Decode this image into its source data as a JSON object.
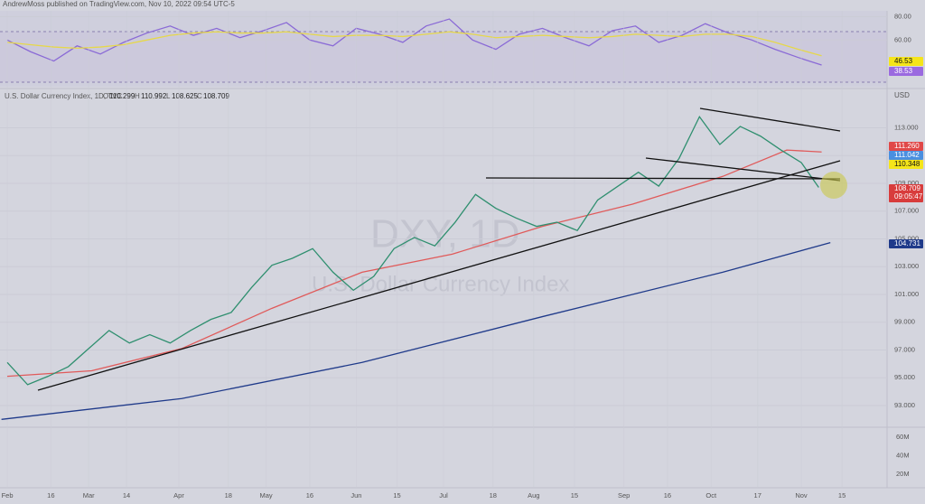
{
  "header": {
    "title": "AndrewMoss published on TradingView.com, Nov 10, 2022 09:54 UTC-5"
  },
  "legend": {
    "symbol": "U.S. Dollar Currency Index, 1D, TVC",
    "o": "O",
    "o_value": "110.299",
    "h": "H",
    "h_value": "110.992",
    "l": "L",
    "l_value": "108.625",
    "c": "C",
    "c_value": "108.709"
  },
  "watermark": {
    "ticker": "DXY, 1D",
    "name": "U.S. Dollar Currency Index"
  },
  "currency": "USD",
  "price_labels": [
    {
      "text": "111.260",
      "color": "#e04848"
    },
    {
      "text": "111.042",
      "color": "#4a8fe0"
    },
    {
      "text": "110.348",
      "color": "#f5e51a"
    },
    {
      "text": "108.709",
      "time": "09:05:47",
      "color": "#d83c3c"
    },
    {
      "text": "104.731",
      "color": "#1f3a8a"
    }
  ],
  "rsi_labels": [
    {
      "text": "46.53",
      "color": "#f5e51a"
    },
    {
      "text": "38.53",
      "color": "#9b6ae0"
    }
  ],
  "volume_ticks": [
    "60M",
    "40M",
    "20M"
  ],
  "chart_data": [
    {
      "type": "line",
      "xlim": [
        -2.5,
        302.5
      ],
      "ylim": [
        20,
        85
      ],
      "yticks": [
        {
          "value": 80,
          "label": "80.00"
        },
        {
          "value": 60,
          "label": "60.00"
        }
      ],
      "series": [
        {
          "color": "#8a6ad6",
          "x": [
            0,
            8,
            16,
            24,
            32,
            40,
            48,
            56,
            64,
            72,
            80,
            88,
            96,
            104,
            112,
            120,
            128,
            136,
            144,
            152,
            160,
            168,
            176,
            184,
            192,
            200,
            208,
            216,
            224,
            232,
            240,
            248,
            256,
            264,
            272,
            280
          ],
          "values": [
            60,
            50,
            42,
            55,
            48,
            58,
            66,
            72,
            64,
            70,
            62,
            68,
            75,
            60,
            55,
            70,
            65,
            58,
            72,
            78,
            60,
            52,
            65,
            70,
            62,
            55,
            68,
            72,
            58,
            64,
            74,
            66,
            60,
            52,
            45,
            38.53
          ]
        },
        {
          "color": "#e6d84a",
          "x": [
            0,
            8,
            16,
            24,
            32,
            40,
            48,
            56,
            64,
            72,
            80,
            88,
            96,
            104,
            112,
            120,
            128,
            136,
            144,
            152,
            160,
            168,
            176,
            184,
            192,
            200,
            208,
            216,
            224,
            232,
            240,
            248,
            256,
            264,
            272,
            280
          ],
          "values": [
            58,
            56,
            54,
            53,
            54,
            56,
            60,
            64,
            66,
            67,
            66,
            66,
            67,
            65,
            63,
            64,
            64,
            63,
            65,
            67,
            65,
            62,
            63,
            64,
            63,
            62,
            63,
            65,
            64,
            63,
            65,
            65,
            63,
            58,
            52,
            46.53
          ]
        }
      ]
    },
    {
      "type": "line",
      "xlim": [
        -2.5,
        302.5
      ],
      "ylim": [
        91.5,
        115.7
      ],
      "yticks": [
        {
          "value": 113,
          "label": "113.000"
        },
        {
          "value": 111,
          "label": "111.000"
        },
        {
          "value": 109,
          "label": "109.000"
        },
        {
          "value": 107,
          "label": "107.000"
        },
        {
          "value": 105,
          "label": "105.000"
        },
        {
          "value": 103,
          "label": "103.000"
        },
        {
          "value": 101,
          "label": "101.000"
        },
        {
          "value": 99,
          "label": "99.000"
        },
        {
          "value": 97,
          "label": "97.000"
        },
        {
          "value": 95,
          "label": "95.000"
        },
        {
          "value": 93,
          "label": "93.000"
        }
      ],
      "xticks": [
        {
          "value": 0,
          "label": "Feb"
        },
        {
          "value": 15,
          "label": "16"
        },
        {
          "value": 28,
          "label": "Mar"
        },
        {
          "value": 41,
          "label": "14"
        },
        {
          "value": 59,
          "label": "Apr"
        },
        {
          "value": 76,
          "label": "18"
        },
        {
          "value": 89,
          "label": "May"
        },
        {
          "value": 104,
          "label": "16"
        },
        {
          "value": 120,
          "label": "Jun"
        },
        {
          "value": 134,
          "label": "15"
        },
        {
          "value": 150,
          "label": "Jul"
        },
        {
          "value": 167,
          "label": "18"
        },
        {
          "value": 181,
          "label": "Aug"
        },
        {
          "value": 195,
          "label": "15"
        },
        {
          "value": 212,
          "label": "Sep"
        },
        {
          "value": 227,
          "label": "16"
        },
        {
          "value": 242,
          "label": "Oct"
        },
        {
          "value": 258,
          "label": "17"
        },
        {
          "value": 273,
          "label": "Nov"
        },
        {
          "value": 287,
          "label": "15"
        }
      ],
      "series": [
        {
          "color": "#1f3a8a",
          "x": [
            -2,
            60,
            122,
            184,
            246,
            283
          ],
          "values": [
            92.0,
            93.5,
            96.1,
            99.4,
            102.6,
            104.731
          ]
        },
        {
          "color": "#e05a5a",
          "x": [
            0,
            29,
            60,
            91,
            122,
            153,
            184,
            215,
            246,
            268,
            280
          ],
          "values": [
            95.1,
            95.5,
            97.1,
            100.0,
            102.6,
            103.9,
            105.9,
            107.5,
            109.5,
            111.4,
            111.26
          ]
        },
        {
          "color": "#2f8f6f",
          "x": [
            0,
            7,
            14,
            21,
            28,
            35,
            42,
            49,
            56,
            63,
            70,
            77,
            84,
            91,
            98,
            105,
            112,
            119,
            126,
            133,
            140,
            147,
            154,
            161,
            168,
            175,
            182,
            189,
            196,
            203,
            210,
            217,
            224,
            231,
            238,
            245,
            252,
            259,
            266,
            273,
            279
          ],
          "values": [
            96.1,
            94.5,
            95.1,
            95.8,
            97.1,
            98.4,
            97.5,
            98.1,
            97.5,
            98.4,
            99.2,
            99.7,
            101.5,
            103.1,
            103.6,
            104.3,
            102.6,
            101.3,
            102.3,
            104.3,
            105.1,
            104.5,
            106.2,
            108.2,
            107.2,
            106.5,
            105.9,
            106.2,
            105.6,
            107.8,
            108.8,
            109.8,
            108.8,
            110.8,
            113.8,
            111.8,
            113.1,
            112.4,
            111.4,
            110.5,
            108.709
          ]
        }
      ]
    }
  ]
}
